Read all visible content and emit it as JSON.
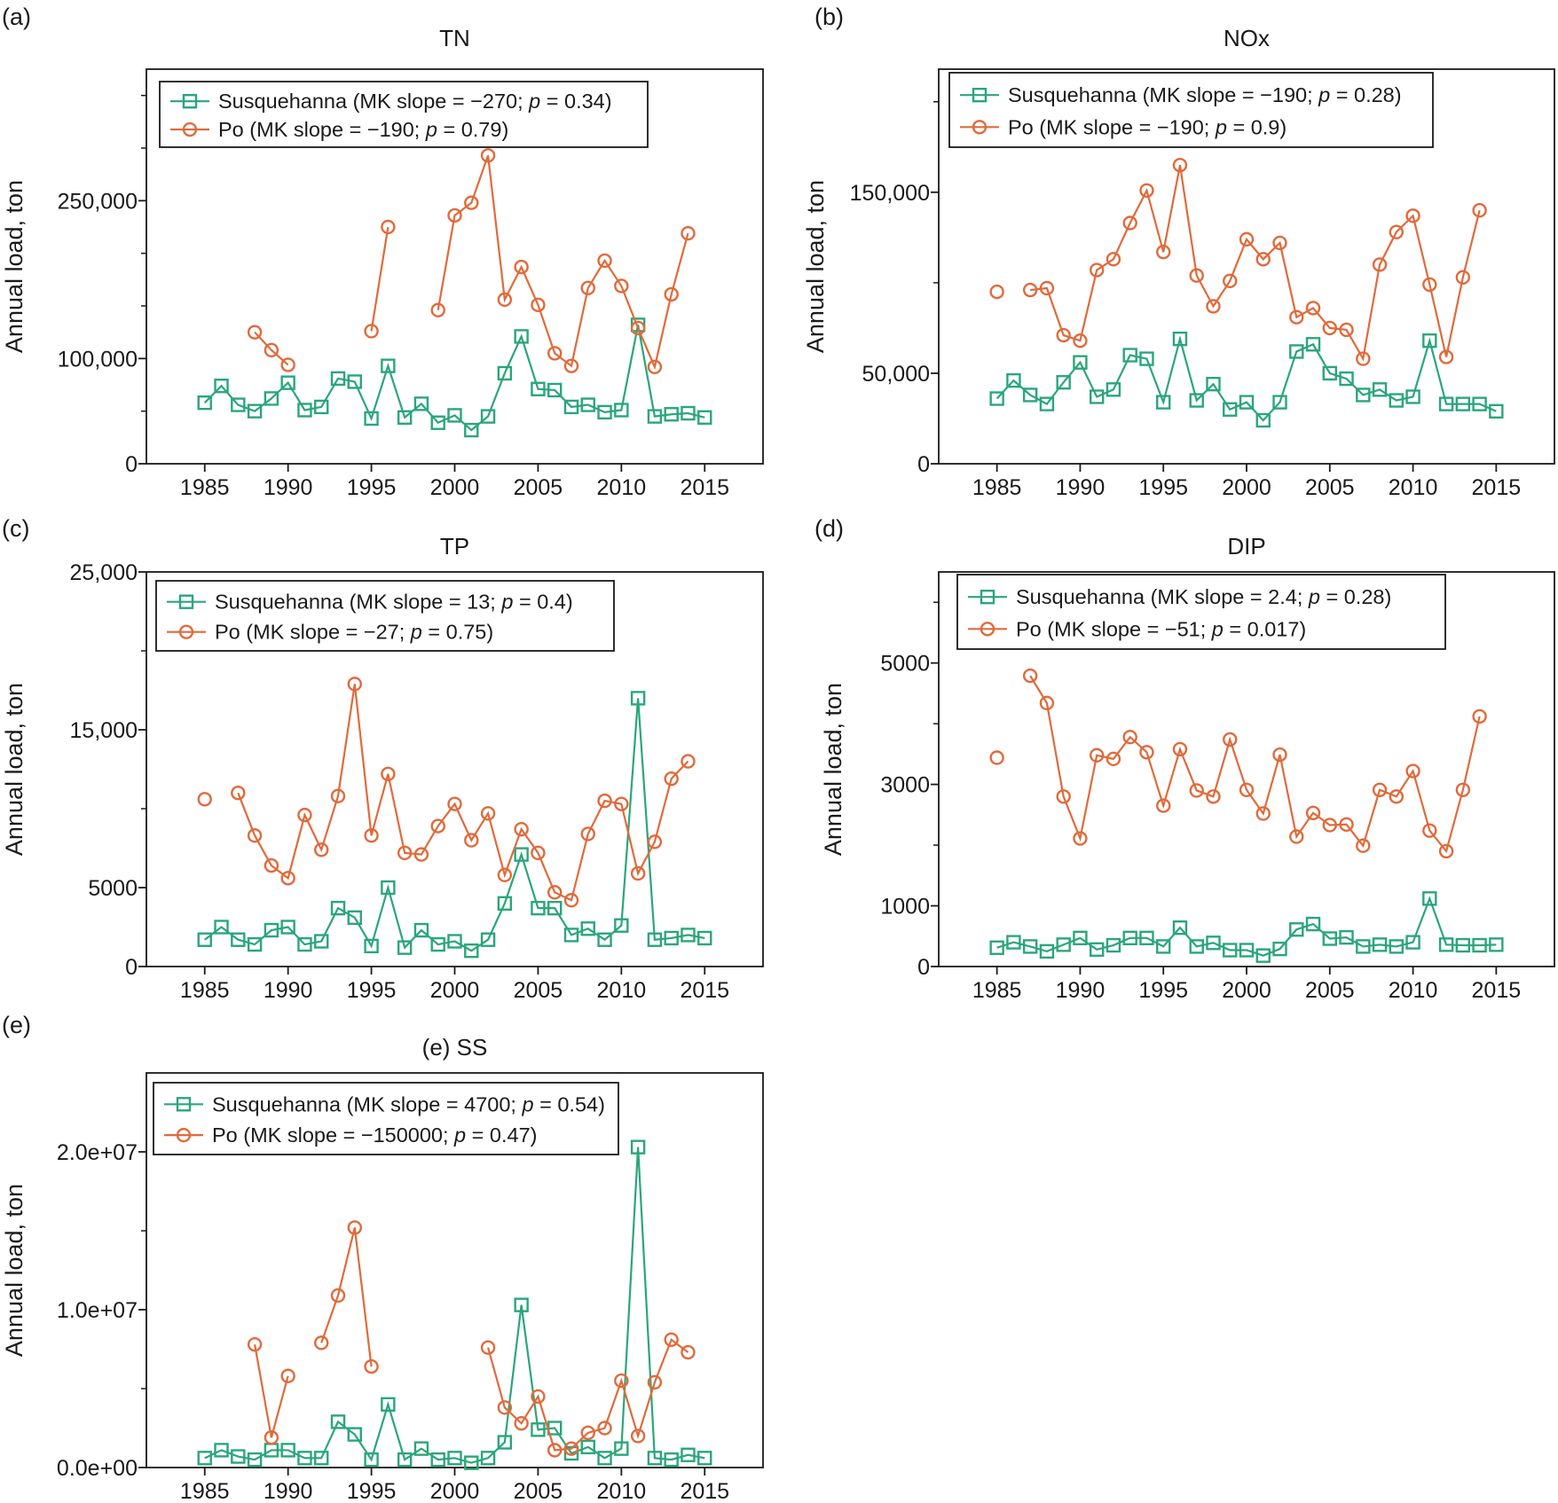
{
  "colors": {
    "susquehanna": "#2aa67a",
    "po": "#e06a3b",
    "axis": "#1a1a1a"
  },
  "chart_data": [
    {
      "type": "line",
      "panel_label": "(a)",
      "title": "TN",
      "xlabel": "",
      "ylabel": "Annual load, ton",
      "xlim": [
        1981.5,
        2018.5
      ],
      "ylim": [
        0,
        375000
      ],
      "x_ticks": [
        1985,
        1990,
        1995,
        2000,
        2005,
        2010,
        2015
      ],
      "x_tick_labels": [
        "1985",
        "1990",
        "1995",
        "2000",
        "2005",
        "2010",
        "2015"
      ],
      "y_ticks": [
        0,
        100000,
        250000
      ],
      "y_tick_labels": [
        "0",
        "100,000",
        "250,000"
      ],
      "y_minor_ticks": [
        50000,
        150000,
        200000,
        300000,
        350000
      ],
      "legend_position": "top-left",
      "series": [
        {
          "name": "Susquehanna",
          "marker": "square",
          "legend": {
            "prefix": "Susquehanna (MK slope = −270; ",
            "p": "p",
            "suffix": " = 0.34)"
          },
          "x": [
            1985,
            1986,
            1987,
            1988,
            1989,
            1990,
            1991,
            1992,
            1993,
            1994,
            1995,
            1996,
            1997,
            1998,
            1999,
            2000,
            2001,
            2002,
            2003,
            2004,
            2005,
            2006,
            2007,
            2008,
            2009,
            2010,
            2011,
            2012,
            2013,
            2014,
            2015
          ],
          "y": [
            58000,
            74000,
            56000,
            50000,
            62000,
            77000,
            51000,
            54000,
            81000,
            78000,
            43000,
            93000,
            44000,
            57000,
            39000,
            46000,
            32000,
            45000,
            86000,
            121000,
            71000,
            70000,
            54000,
            56000,
            49000,
            51000,
            132000,
            45000,
            47000,
            48000,
            44000
          ]
        },
        {
          "name": "Po",
          "marker": "circle",
          "legend": {
            "prefix": "Po (MK slope = −190; ",
            "p": "p",
            "suffix": " = 0.79)"
          },
          "x": [
            1985,
            1986,
            1987,
            1988,
            1989,
            1990,
            1991,
            1992,
            1993,
            1994,
            1995,
            1996,
            1997,
            1998,
            1999,
            2000,
            2001,
            2002,
            2003,
            2004,
            2005,
            2006,
            2007,
            2008,
            2009,
            2010,
            2011,
            2012,
            2013,
            2014,
            2015
          ],
          "y": [
            null,
            null,
            null,
            125000,
            108000,
            94000,
            null,
            null,
            null,
            null,
            126000,
            225000,
            null,
            null,
            146000,
            236000,
            248000,
            293000,
            156000,
            187000,
            151000,
            105000,
            93000,
            167000,
            193000,
            169000,
            129000,
            92000,
            161000,
            219000,
            null
          ]
        }
      ]
    },
    {
      "type": "line",
      "panel_label": "(b)",
      "title": "NOx",
      "xlabel": "",
      "ylabel": "Annual load, ton",
      "xlim": [
        1981.5,
        2018.5
      ],
      "ylim": [
        0,
        218000
      ],
      "x_ticks": [
        1985,
        1990,
        1995,
        2000,
        2005,
        2010,
        2015
      ],
      "x_tick_labels": [
        "1985",
        "1990",
        "1995",
        "2000",
        "2005",
        "2010",
        "2015"
      ],
      "y_ticks": [
        0,
        50000,
        150000
      ],
      "y_tick_labels": [
        "0",
        "50,000",
        "150,000"
      ],
      "y_minor_ticks": [
        100000,
        200000
      ],
      "legend_position": "top-left",
      "series": [
        {
          "name": "Susquehanna",
          "marker": "square",
          "legend": {
            "prefix": "Susquehanna (MK slope = −190; ",
            "p": "p",
            "suffix": " = 0.28)"
          },
          "x": [
            1985,
            1986,
            1987,
            1988,
            1989,
            1990,
            1991,
            1992,
            1993,
            1994,
            1995,
            1996,
            1997,
            1998,
            1999,
            2000,
            2001,
            2002,
            2003,
            2004,
            2005,
            2006,
            2007,
            2008,
            2009,
            2010,
            2011,
            2012,
            2013,
            2014,
            2015
          ],
          "y": [
            36000,
            46000,
            38000,
            33000,
            45000,
            56000,
            37000,
            41000,
            60000,
            58000,
            34000,
            69000,
            35000,
            44000,
            30000,
            34000,
            24000,
            34000,
            62000,
            66000,
            50000,
            47000,
            38000,
            41000,
            35000,
            37000,
            68000,
            33000,
            33000,
            33000,
            29000
          ]
        },
        {
          "name": "Po",
          "marker": "circle",
          "legend": {
            "prefix": "Po (MK slope = −190; ",
            "p": "p",
            "suffix": " = 0.9)"
          },
          "x": [
            1985,
            1986,
            1987,
            1988,
            1989,
            1990,
            1991,
            1992,
            1993,
            1994,
            1995,
            1996,
            1997,
            1998,
            1999,
            2000,
            2001,
            2002,
            2003,
            2004,
            2005,
            2006,
            2007,
            2008,
            2009,
            2010,
            2011,
            2012,
            2013,
            2014,
            2015
          ],
          "y": [
            95000,
            null,
            96000,
            97000,
            71000,
            68000,
            107000,
            113000,
            133000,
            151000,
            117000,
            165000,
            104000,
            87000,
            101000,
            124000,
            113000,
            122000,
            81000,
            86000,
            75000,
            74000,
            58000,
            110000,
            128000,
            137000,
            99000,
            59000,
            103000,
            140000,
            null
          ]
        }
      ]
    },
    {
      "type": "line",
      "panel_label": "(c)",
      "title": "TP",
      "xlabel": "",
      "ylabel": "Annual load, ton",
      "xlim": [
        1981.5,
        2018.5
      ],
      "ylim": [
        0,
        25000
      ],
      "x_ticks": [
        1985,
        1990,
        1995,
        2000,
        2005,
        2010,
        2015
      ],
      "x_tick_labels": [
        "1985",
        "1990",
        "1995",
        "2000",
        "2005",
        "2010",
        "2015"
      ],
      "y_ticks": [
        0,
        5000,
        15000,
        25000
      ],
      "y_tick_labels": [
        "0",
        "5000",
        "15,000",
        "25,000"
      ],
      "y_minor_ticks": [
        10000,
        20000
      ],
      "legend_position": "top-left",
      "series": [
        {
          "name": "Susquehanna",
          "marker": "square",
          "legend": {
            "prefix": "Susquehanna (MK slope = 13; ",
            "p": "p",
            "suffix": " = 0.4)"
          },
          "x": [
            1985,
            1986,
            1987,
            1988,
            1989,
            1990,
            1991,
            1992,
            1993,
            1994,
            1995,
            1996,
            1997,
            1998,
            1999,
            2000,
            2001,
            2002,
            2003,
            2004,
            2005,
            2006,
            2007,
            2008,
            2009,
            2010,
            2011,
            2012,
            2013,
            2014,
            2015
          ],
          "y": [
            1700,
            2500,
            1700,
            1400,
            2300,
            2500,
            1400,
            1600,
            3700,
            3100,
            1300,
            5000,
            1200,
            2300,
            1400,
            1600,
            1000,
            1700,
            4000,
            7100,
            3700,
            3700,
            2000,
            2400,
            1700,
            2600,
            17000,
            1700,
            1800,
            2000,
            1800
          ]
        },
        {
          "name": "Po",
          "marker": "circle",
          "legend": {
            "prefix": "Po (MK slope = −27; ",
            "p": "p",
            "suffix": " = 0.75)"
          },
          "x": [
            1985,
            1986,
            1987,
            1988,
            1989,
            1990,
            1991,
            1992,
            1993,
            1994,
            1995,
            1996,
            1997,
            1998,
            1999,
            2000,
            2001,
            2002,
            2003,
            2004,
            2005,
            2006,
            2007,
            2008,
            2009,
            2010,
            2011,
            2012,
            2013,
            2014,
            2015
          ],
          "y": [
            10600,
            null,
            11000,
            8300,
            6400,
            5600,
            9600,
            7400,
            10800,
            17900,
            8300,
            12200,
            7200,
            7100,
            8900,
            10300,
            8000,
            9700,
            5800,
            8700,
            7200,
            4700,
            4200,
            8400,
            10500,
            10300,
            5900,
            7900,
            11900,
            13000,
            null
          ]
        }
      ]
    },
    {
      "type": "line",
      "panel_label": "(d)",
      "title": "DIP",
      "xlabel": "",
      "ylabel": "Annual load, ton",
      "xlim": [
        1981.5,
        2018.5
      ],
      "ylim": [
        0,
        6500
      ],
      "x_ticks": [
        1985,
        1990,
        1995,
        2000,
        2005,
        2010,
        2015
      ],
      "x_tick_labels": [
        "1985",
        "1990",
        "1995",
        "2000",
        "2005",
        "2010",
        "2015"
      ],
      "y_ticks": [
        0,
        1000,
        3000,
        5000
      ],
      "y_tick_labels": [
        "0",
        "1000",
        "3000",
        "5000"
      ],
      "y_minor_ticks": [
        2000,
        4000,
        6000
      ],
      "legend_position": "top-left",
      "series": [
        {
          "name": "Susquehanna",
          "marker": "square",
          "legend": {
            "prefix": "Susquehanna (MK slope = 2.4; ",
            "p": "p",
            "suffix": " = 0.28)"
          },
          "x": [
            1985,
            1986,
            1987,
            1988,
            1989,
            1990,
            1991,
            1992,
            1993,
            1994,
            1995,
            1996,
            1997,
            1998,
            1999,
            2000,
            2001,
            2002,
            2003,
            2004,
            2005,
            2006,
            2007,
            2008,
            2009,
            2010,
            2011,
            2012,
            2013,
            2014,
            2015
          ],
          "y": [
            310,
            400,
            330,
            250,
            360,
            470,
            280,
            350,
            470,
            470,
            330,
            640,
            330,
            390,
            270,
            270,
            180,
            290,
            610,
            700,
            460,
            480,
            330,
            360,
            330,
            400,
            1120,
            360,
            350,
            350,
            360
          ]
        },
        {
          "name": "Po",
          "marker": "circle",
          "legend": {
            "prefix": "Po (MK slope = −51; ",
            "p": "p",
            "suffix": " = 0.017)"
          },
          "x": [
            1985,
            1986,
            1987,
            1988,
            1989,
            1990,
            1991,
            1992,
            1993,
            1994,
            1995,
            1996,
            1997,
            1998,
            1999,
            2000,
            2001,
            2002,
            2003,
            2004,
            2005,
            2006,
            2007,
            2008,
            2009,
            2010,
            2011,
            2012,
            2013,
            2014,
            2015
          ],
          "y": [
            3440,
            null,
            4790,
            4340,
            2800,
            2110,
            3480,
            3420,
            3780,
            3530,
            2650,
            3580,
            2900,
            2800,
            3740,
            2910,
            2520,
            3490,
            2140,
            2530,
            2330,
            2340,
            1990,
            2910,
            2800,
            3220,
            2240,
            1900,
            2910,
            4120,
            null
          ]
        }
      ]
    },
    {
      "type": "line",
      "panel_label": "(e)",
      "title": "(e) SS",
      "xlabel": "",
      "ylabel": "Annual load, ton",
      "xlim": [
        1981.5,
        2018.5
      ],
      "ylim": [
        0,
        25000000
      ],
      "x_ticks": [
        1985,
        1990,
        1995,
        2000,
        2005,
        2010,
        2015
      ],
      "x_tick_labels": [
        "1985",
        "1990",
        "1995",
        "2000",
        "2005",
        "2010",
        "2015"
      ],
      "y_ticks": [
        0,
        10000000,
        20000000
      ],
      "y_tick_labels": [
        "0.0e+00",
        "1.0e+07",
        "2.0e+07"
      ],
      "y_minor_ticks": [
        5000000,
        15000000
      ],
      "legend_position": "top-left",
      "series": [
        {
          "name": "Susquehanna",
          "marker": "square",
          "legend": {
            "prefix": "Susquehanna (MK slope = 4700; ",
            "p": "p",
            "suffix": " = 0.54)"
          },
          "x": [
            1985,
            1986,
            1987,
            1988,
            1989,
            1990,
            1991,
            1992,
            1993,
            1994,
            1995,
            1996,
            1997,
            1998,
            1999,
            2000,
            2001,
            2002,
            2003,
            2004,
            2005,
            2006,
            2007,
            2008,
            2009,
            2010,
            2011,
            2012,
            2013,
            2014,
            2015
          ],
          "y": [
            600000,
            1100000,
            700000,
            500000,
            1100000,
            1100000,
            600000,
            600000,
            2900000,
            2100000,
            500000,
            4000000,
            500000,
            1200000,
            500000,
            600000,
            300000,
            600000,
            1600000,
            10300000,
            2400000,
            2500000,
            900000,
            1300000,
            600000,
            1200000,
            20300000,
            600000,
            500000,
            800000,
            600000
          ]
        },
        {
          "name": "Po",
          "marker": "circle",
          "legend": {
            "prefix": "Po (MK slope = −150000; ",
            "p": "p",
            "suffix": " = 0.47)"
          },
          "x": [
            1985,
            1986,
            1987,
            1988,
            1989,
            1990,
            1991,
            1992,
            1993,
            1994,
            1995,
            1996,
            1997,
            1998,
            1999,
            2000,
            2001,
            2002,
            2003,
            2004,
            2005,
            2006,
            2007,
            2008,
            2009,
            2010,
            2011,
            2012,
            2013,
            2014,
            2015
          ],
          "y": [
            null,
            null,
            null,
            7800000,
            1900000,
            5800000,
            null,
            7900000,
            10900000,
            15200000,
            6400000,
            null,
            null,
            null,
            null,
            null,
            null,
            7600000,
            3800000,
            2800000,
            4500000,
            1100000,
            1200000,
            2200000,
            2500000,
            5500000,
            2000000,
            5400000,
            8100000,
            7300000,
            null
          ]
        }
      ]
    }
  ]
}
